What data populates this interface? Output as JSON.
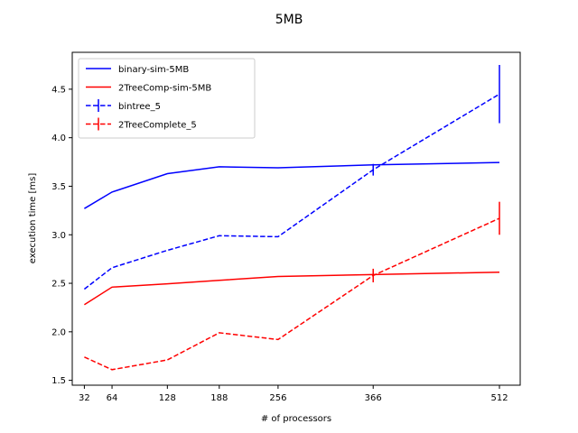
{
  "chart_data": {
    "type": "line",
    "title": "5MB",
    "xlabel": "# of processors",
    "ylabel": "execution time [ms]",
    "xticks": [
      32,
      64,
      128,
      188,
      256,
      366,
      512
    ],
    "yticks": [
      "1.5",
      "2.0",
      "2.5",
      "3.0",
      "3.5",
      "4.0",
      "4.5"
    ],
    "xlim": [
      18,
      536
    ],
    "ylim": [
      1.45,
      4.88
    ],
    "grid": false,
    "legend_position": "upper-left",
    "series": [
      {
        "name": "binary-sim-5MB",
        "color": "#0000ff",
        "dash": "solid",
        "errorbars": false,
        "x": [
          32,
          64,
          128,
          188,
          256,
          366,
          512
        ],
        "y": [
          3.27,
          3.44,
          3.63,
          3.7,
          3.69,
          3.72,
          3.745
        ]
      },
      {
        "name": "2TreeComp-sim-5MB",
        "color": "#ff0000",
        "dash": "solid",
        "errorbars": false,
        "x": [
          32,
          64,
          128,
          188,
          256,
          366,
          512
        ],
        "y": [
          2.28,
          2.46,
          2.495,
          2.53,
          2.57,
          2.59,
          2.615
        ]
      },
      {
        "name": "bintree_5",
        "color": "#0000ff",
        "dash": "dashed",
        "errorbars": true,
        "x": [
          32,
          64,
          128,
          188,
          256,
          366,
          512
        ],
        "y": [
          2.44,
          2.66,
          2.84,
          2.99,
          2.98,
          3.67,
          4.45
        ],
        "err": [
          0,
          0,
          0,
          0,
          0,
          0.06,
          0.3
        ]
      },
      {
        "name": "2TreeComplete_5",
        "color": "#ff0000",
        "dash": "dashed",
        "errorbars": true,
        "x": [
          32,
          64,
          128,
          188,
          256,
          366,
          512
        ],
        "y": [
          1.74,
          1.61,
          1.71,
          1.99,
          1.92,
          2.58,
          3.17
        ],
        "err": [
          0,
          0,
          0,
          0,
          0,
          0.07,
          0.17
        ]
      }
    ]
  }
}
